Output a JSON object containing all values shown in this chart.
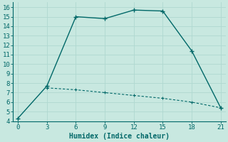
{
  "xlabel": "Humidex (Indice chaleur)",
  "ylabel": "",
  "bg_color": "#c8e8e0",
  "grid_color": "#b0d8d0",
  "line_color": "#006868",
  "solid_x": [
    0,
    3,
    6,
    9,
    12,
    15,
    18,
    21
  ],
  "solid_y": [
    4.3,
    7.7,
    15.0,
    14.8,
    15.7,
    15.6,
    11.4,
    5.4
  ],
  "dashed_x": [
    3,
    6,
    9,
    12,
    15,
    18,
    21
  ],
  "dashed_y": [
    7.5,
    7.3,
    7.0,
    6.7,
    6.4,
    6.0,
    5.4
  ],
  "xlim": [
    -0.5,
    21.5
  ],
  "ylim": [
    4,
    16.5
  ],
  "xticks": [
    0,
    3,
    6,
    9,
    12,
    15,
    18,
    21
  ],
  "yticks": [
    4,
    5,
    6,
    7,
    8,
    9,
    10,
    11,
    12,
    13,
    14,
    15,
    16
  ],
  "xlabel_fontsize": 7,
  "tick_fontsize": 6.5
}
